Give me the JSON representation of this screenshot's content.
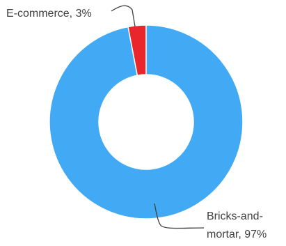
{
  "chart_data": {
    "type": "pie",
    "variant": "donut",
    "slices": [
      {
        "label": "E-commerce",
        "value": 3,
        "color": "#e8262b"
      },
      {
        "label": "Bricks-and-mortar",
        "value": 97,
        "color": "#42aaf5"
      }
    ],
    "data_labels": {
      "ecommerce": "E-commerce, 3%",
      "bricks_line1": "Bricks-and-",
      "bricks_line2": "mortar, 97%"
    },
    "leader_line_color": "#404040"
  }
}
